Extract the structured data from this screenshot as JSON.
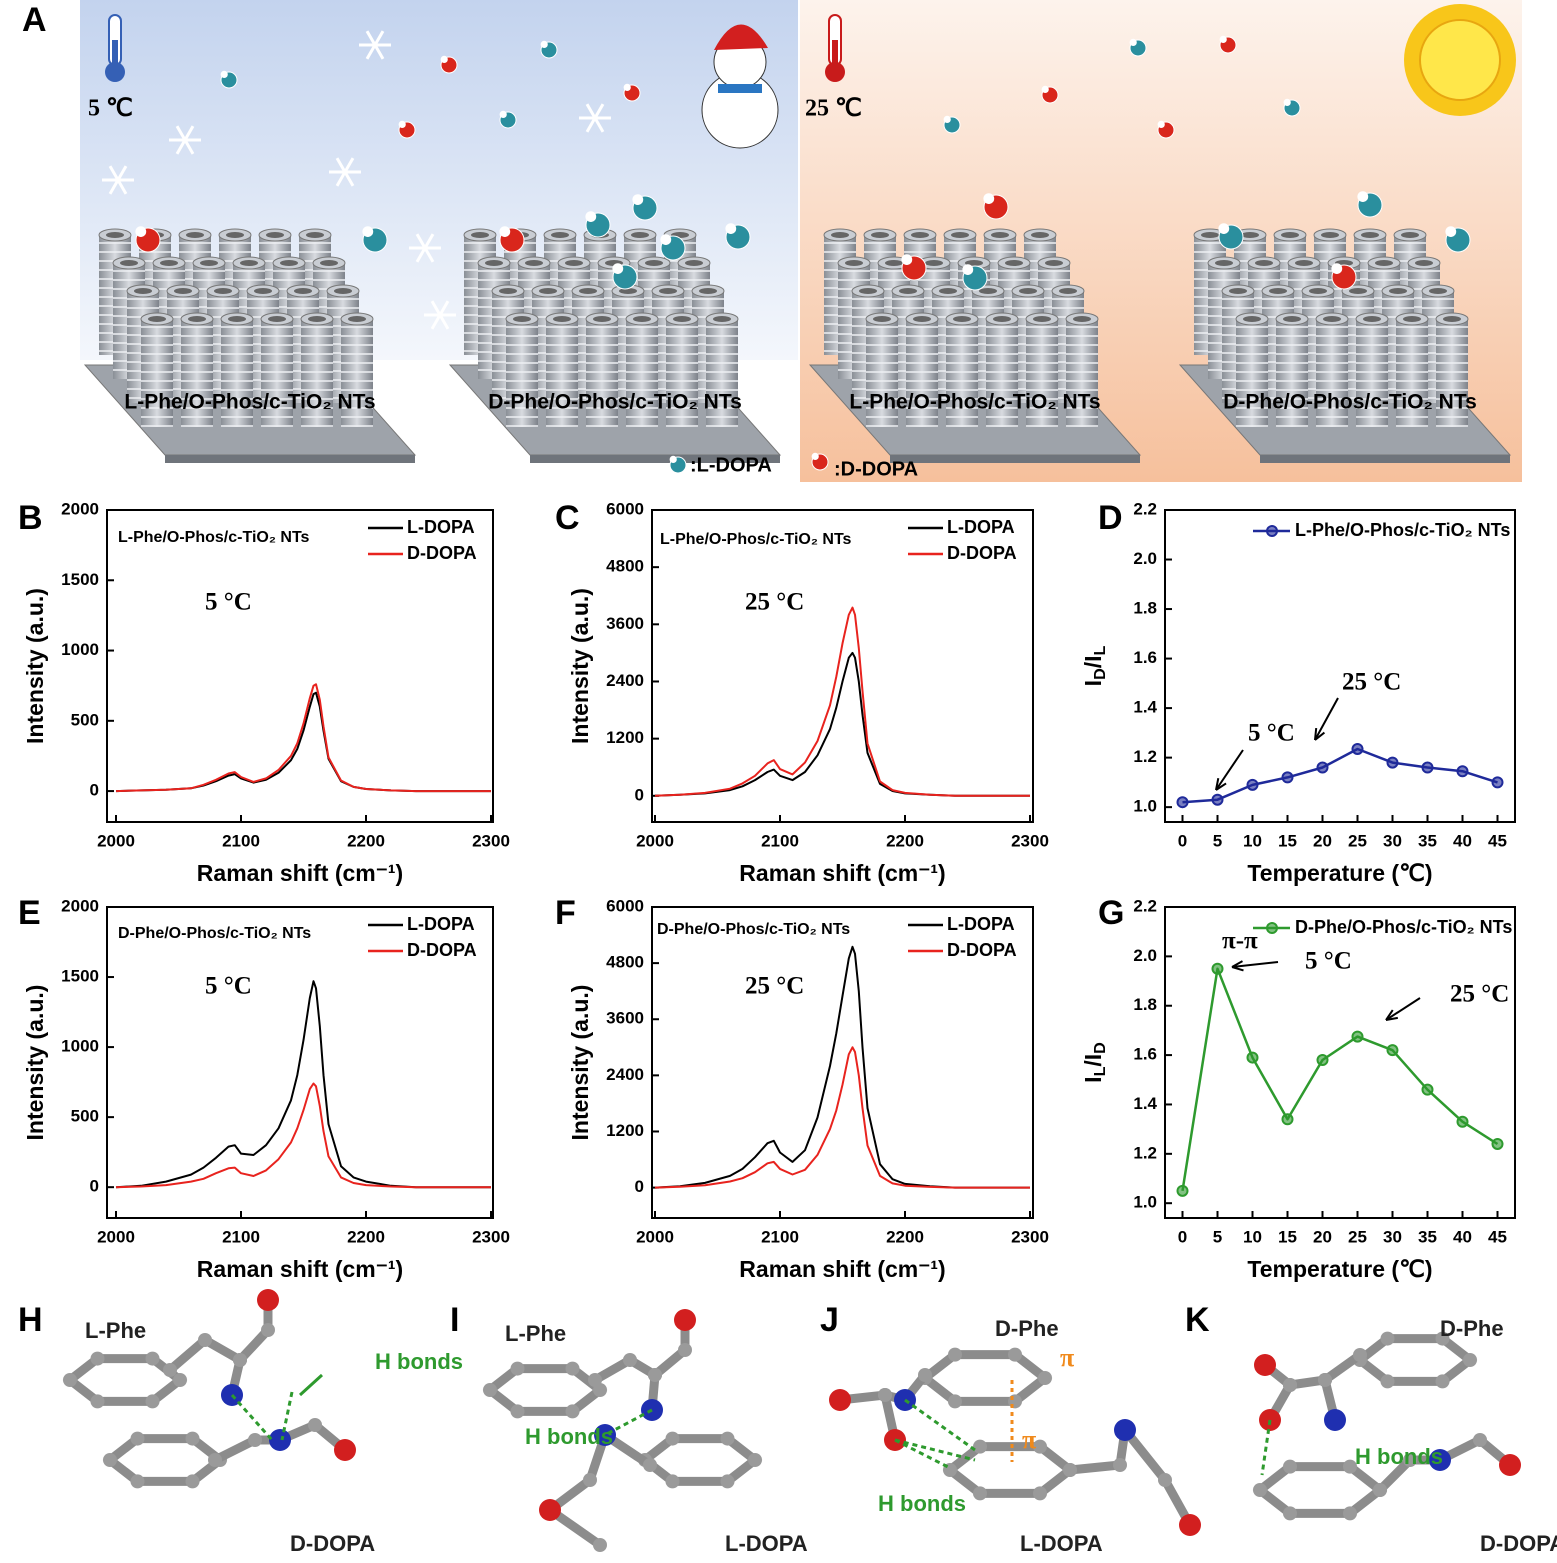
{
  "figure": {
    "panel_labels": [
      "A",
      "B",
      "C",
      "D",
      "E",
      "F",
      "G",
      "H",
      "I",
      "J",
      "K"
    ],
    "panel_a": {
      "temps": [
        "5 ℃",
        "25 ℃"
      ],
      "substrates": [
        "L-Phe/O-Phos/c-TiO₂ NTs",
        "D-Phe/O-Phos/c-TiO₂ NTs",
        "L-Phe/O-Phos/c-TiO₂ NTs",
        "D-Phe/O-Phos/c-TiO₂ NTs"
      ],
      "legend": [
        ":L-DOPA",
        ":D-DOPA"
      ]
    },
    "molecules": [
      {
        "texts": [
          "L-Phe",
          "H bonds",
          "D-DOPA"
        ]
      },
      {
        "texts": [
          "L-Phe",
          "H bonds",
          "L-DOPA"
        ]
      },
      {
        "texts": [
          "D-Phe",
          "π",
          "π",
          "H bonds",
          "L-DOPA"
        ]
      },
      {
        "texts": [
          "D-Phe",
          "H bonds",
          "D-DOPA"
        ]
      }
    ]
  },
  "chart_data": [
    {
      "type": "line",
      "subtitle": "L-Phe/O-Phos/c-TiO₂ NTs",
      "xlabel": "Raman shift (cm⁻¹)",
      "ylabel": "Intensity (a.u.)",
      "xlim": [
        2000,
        2300
      ],
      "ylim": [
        -220,
        2000
      ],
      "xticks": [
        2000,
        2100,
        2200,
        2300
      ],
      "yticks": [
        0,
        500,
        1000,
        1500,
        2000
      ],
      "annotations": [
        "5 °C"
      ],
      "x": [
        2000,
        2020,
        2040,
        2060,
        2070,
        2080,
        2090,
        2095,
        2100,
        2110,
        2120,
        2130,
        2140,
        2145,
        2150,
        2155,
        2158,
        2160,
        2163,
        2166,
        2170,
        2180,
        2190,
        2200,
        2220,
        2240,
        2260,
        2280,
        2300
      ],
      "series": [
        {
          "name": "L-DOPA",
          "color": "#000000",
          "values": [
            0,
            5,
            10,
            20,
            40,
            70,
            110,
            120,
            90,
            60,
            80,
            130,
            220,
            300,
            430,
            600,
            690,
            700,
            600,
            430,
            230,
            70,
            30,
            15,
            5,
            0,
            0,
            0,
            0
          ]
        },
        {
          "name": "D-DOPA",
          "color": "#e8231e",
          "values": [
            0,
            5,
            10,
            20,
            45,
            80,
            125,
            135,
            100,
            65,
            90,
            150,
            250,
            340,
            480,
            660,
            750,
            760,
            650,
            460,
            240,
            75,
            30,
            15,
            5,
            0,
            0,
            0,
            0
          ]
        }
      ]
    },
    {
      "type": "line",
      "subtitle": "L-Phe/O-Phos/c-TiO₂ NTs",
      "xlabel": "Raman shift (cm⁻¹)",
      "ylabel": "Intensity (a.u.)",
      "xlim": [
        2000,
        2300
      ],
      "ylim": [
        -550,
        6000
      ],
      "xticks": [
        2000,
        2100,
        2200,
        2300
      ],
      "yticks": [
        0,
        1200,
        2400,
        3600,
        4800,
        6000
      ],
      "annotations": [
        "25 °C"
      ],
      "x": [
        2000,
        2020,
        2040,
        2060,
        2070,
        2080,
        2090,
        2095,
        2100,
        2110,
        2120,
        2130,
        2140,
        2145,
        2150,
        2155,
        2158,
        2160,
        2163,
        2166,
        2170,
        2180,
        2190,
        2200,
        2220,
        2240,
        2260,
        2280,
        2300
      ],
      "series": [
        {
          "name": "L-DOPA",
          "color": "#000000",
          "values": [
            0,
            20,
            50,
            120,
            200,
            330,
            500,
            550,
            420,
            330,
            500,
            850,
            1400,
            1850,
            2400,
            2900,
            3000,
            2900,
            2400,
            1700,
            900,
            250,
            100,
            50,
            20,
            0,
            0,
            0,
            0
          ]
        },
        {
          "name": "D-DOPA",
          "color": "#e8231e",
          "values": [
            0,
            20,
            60,
            150,
            260,
            420,
            680,
            750,
            560,
            450,
            700,
            1150,
            1900,
            2500,
            3200,
            3800,
            3950,
            3800,
            3100,
            2200,
            1100,
            300,
            120,
            60,
            20,
            0,
            0,
            0,
            0
          ]
        }
      ]
    },
    {
      "type": "line",
      "markers": true,
      "xlabel": "Temperature (℃)",
      "ylabel": "ID/IL",
      "xlim": [
        -2.5,
        47.5
      ],
      "ylim": [
        0.94,
        2.2
      ],
      "x": [
        0,
        5,
        10,
        15,
        20,
        25,
        30,
        35,
        40,
        45
      ],
      "xticks": [
        0,
        5,
        10,
        15,
        20,
        25,
        30,
        35,
        40,
        45
      ],
      "yticks": [
        {
          "value": 1,
          "label": "1.0"
        },
        1.2,
        1.4,
        1.6,
        1.8,
        {
          "value": 2,
          "label": "2.0"
        },
        2.2
      ],
      "annotations": [
        "25 °C",
        "5 °C"
      ],
      "series": [
        {
          "name": "L-Phe/O-Phos/c-TiO₂ NTs",
          "color": "#1f2a9a",
          "values": [
            1.02,
            1.03,
            1.09,
            1.12,
            1.16,
            1.235,
            1.18,
            1.16,
            1.145,
            1.1
          ]
        }
      ]
    },
    {
      "type": "line",
      "subtitle": "D-Phe/O-Phos/c-TiO₂ NTs",
      "xlabel": "Raman shift (cm⁻¹)",
      "ylabel": "Intensity (a.u.)",
      "xlim": [
        2000,
        2300
      ],
      "ylim": [
        -220,
        2000
      ],
      "xticks": [
        2000,
        2100,
        2200,
        2300
      ],
      "yticks": [
        0,
        500,
        1000,
        1500,
        2000
      ],
      "annotations": [
        "5 °C"
      ],
      "x": [
        2000,
        2020,
        2040,
        2060,
        2070,
        2080,
        2090,
        2095,
        2100,
        2110,
        2120,
        2130,
        2140,
        2145,
        2150,
        2155,
        2158,
        2160,
        2163,
        2166,
        2170,
        2180,
        2190,
        2200,
        2220,
        2240,
        2260,
        2280,
        2300
      ],
      "series": [
        {
          "name": "L-DOPA",
          "color": "#000000",
          "values": [
            0,
            10,
            40,
            90,
            140,
            210,
            290,
            300,
            240,
            230,
            300,
            420,
            620,
            800,
            1050,
            1350,
            1470,
            1420,
            1150,
            800,
            450,
            150,
            70,
            40,
            10,
            0,
            0,
            0,
            0
          ]
        },
        {
          "name": "D-DOPA",
          "color": "#e8231e",
          "values": [
            0,
            5,
            15,
            40,
            60,
            100,
            135,
            140,
            100,
            80,
            120,
            200,
            320,
            420,
            550,
            700,
            740,
            720,
            580,
            400,
            220,
            70,
            30,
            15,
            5,
            0,
            0,
            0,
            0
          ]
        }
      ]
    },
    {
      "type": "line",
      "subtitle": "D-Phe/O-Phos/c-TiO₂ NTs",
      "xlabel": "Raman shift (cm⁻¹)",
      "ylabel": "Intensity (a.u.)",
      "xlim": [
        2000,
        2300
      ],
      "ylim": [
        -650,
        6000
      ],
      "xticks": [
        2000,
        2100,
        2200,
        2300
      ],
      "yticks": [
        0,
        1200,
        2400,
        3600,
        4800,
        6000
      ],
      "annotations": [
        "25 °C"
      ],
      "x": [
        2000,
        2020,
        2040,
        2060,
        2070,
        2080,
        2090,
        2095,
        2100,
        2110,
        2120,
        2130,
        2140,
        2145,
        2150,
        2155,
        2158,
        2160,
        2163,
        2166,
        2170,
        2180,
        2190,
        2200,
        2220,
        2240,
        2260,
        2280,
        2300
      ],
      "series": [
        {
          "name": "L-DOPA",
          "color": "#000000",
          "values": [
            0,
            30,
            100,
            250,
            400,
            650,
            950,
            1000,
            750,
            550,
            800,
            1500,
            2600,
            3300,
            4100,
            4900,
            5150,
            5000,
            4200,
            3000,
            1700,
            500,
            180,
            80,
            30,
            0,
            0,
            0,
            0
          ]
        },
        {
          "name": "D-DOPA",
          "color": "#e8231e",
          "values": [
            0,
            20,
            50,
            130,
            200,
            330,
            520,
            550,
            400,
            280,
            380,
            700,
            1250,
            1650,
            2200,
            2850,
            3000,
            2900,
            2400,
            1700,
            900,
            250,
            90,
            40,
            15,
            0,
            0,
            0,
            0
          ]
        }
      ]
    },
    {
      "type": "line",
      "markers": true,
      "xlabel": "Temperature (℃)",
      "ylabel": "IL/ID",
      "xlim": [
        -2.5,
        47.5
      ],
      "ylim": [
        0.94,
        2.2
      ],
      "x": [
        0,
        5,
        10,
        15,
        20,
        25,
        30,
        35,
        40,
        45
      ],
      "xticks": [
        0,
        5,
        10,
        15,
        20,
        25,
        30,
        35,
        40,
        45
      ],
      "yticks": [
        {
          "value": 1,
          "label": "1.0"
        },
        1.2,
        1.4,
        1.6,
        1.8,
        {
          "value": 2,
          "label": "2.0"
        },
        2.2
      ],
      "annotations": [
        "π-π",
        "5 °C",
        "25 °C"
      ],
      "series": [
        {
          "name": "D-Phe/O-Phos/c-TiO₂ NTs",
          "color": "#2e9a2e",
          "values": [
            1.05,
            1.95,
            1.59,
            1.34,
            1.58,
            1.675,
            1.62,
            1.46,
            1.33,
            1.24
          ]
        }
      ]
    }
  ]
}
